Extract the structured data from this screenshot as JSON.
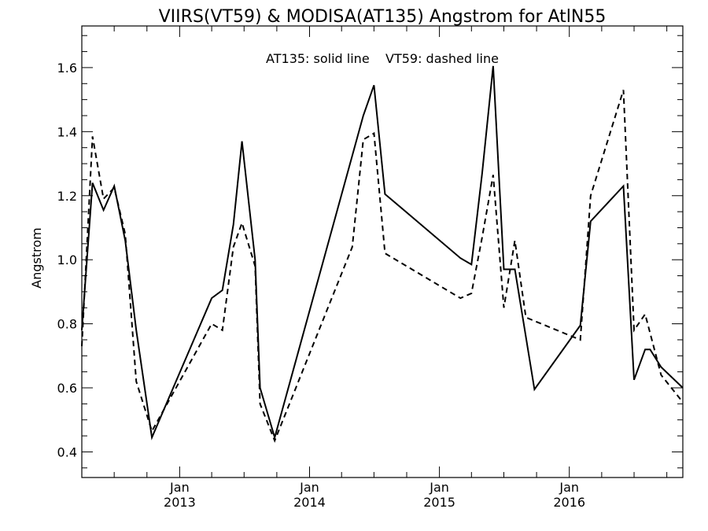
{
  "chart_data": {
    "type": "line",
    "title": "VIIRS(VT59) & MODISA(AT135)  Angstrom for AtlN55",
    "annotation": "AT135: solid line    VT59: dashed line",
    "xlabel": "",
    "ylabel": "Angstrom",
    "xlim": [
      "2012-04-01",
      "2016-11-15"
    ],
    "ylim": [
      0.32,
      1.73
    ],
    "yticks": [
      0.4,
      0.6,
      0.8,
      1.0,
      1.2,
      1.4,
      1.6
    ],
    "ytick_labels": [
      "0.4",
      "0.6",
      "0.8",
      "1.0",
      "1.2",
      "1.4",
      "1.6"
    ],
    "xticks": [
      {
        "date": "2013-01-01",
        "month": "Jan",
        "year": "2013"
      },
      {
        "date": "2014-01-01",
        "month": "Jan",
        "year": "2014"
      },
      {
        "date": "2015-01-01",
        "month": "Jan",
        "year": "2015"
      },
      {
        "date": "2016-01-01",
        "month": "Jan",
        "year": "2016"
      }
    ],
    "grid": false,
    "series": [
      {
        "name": "AT135",
        "style": "solid",
        "points": [
          [
            "2012-04-01",
            0.78
          ],
          [
            "2012-05-01",
            1.24
          ],
          [
            "2012-06-01",
            1.155
          ],
          [
            "2012-07-01",
            1.23
          ],
          [
            "2012-08-01",
            1.06
          ],
          [
            "2012-09-01",
            0.78
          ],
          [
            "2012-10-15",
            0.445
          ],
          [
            "2013-04-01",
            0.88
          ],
          [
            "2013-05-01",
            0.905
          ],
          [
            "2013-06-01",
            1.11
          ],
          [
            "2013-06-25",
            1.37
          ],
          [
            "2013-08-01",
            1.0
          ],
          [
            "2013-08-15",
            0.6
          ],
          [
            "2013-09-25",
            0.445
          ],
          [
            "2014-06-01",
            1.45
          ],
          [
            "2014-07-01",
            1.545
          ],
          [
            "2014-08-01",
            1.205
          ],
          [
            "2015-03-01",
            1.005
          ],
          [
            "2015-04-01",
            0.985
          ],
          [
            "2015-05-01",
            1.27
          ],
          [
            "2015-06-01",
            1.605
          ],
          [
            "2015-07-01",
            0.97
          ],
          [
            "2015-08-01",
            0.97
          ],
          [
            "2015-09-25",
            0.595
          ],
          [
            "2016-02-01",
            0.795
          ],
          [
            "2016-03-01",
            1.12
          ],
          [
            "2016-06-01",
            1.23
          ],
          [
            "2016-07-01",
            0.625
          ],
          [
            "2016-08-01",
            0.72
          ],
          [
            "2016-08-15",
            0.72
          ],
          [
            "2016-09-15",
            0.665
          ],
          [
            "2016-11-15",
            0.6
          ]
        ]
      },
      {
        "name": "VT59",
        "style": "dashed",
        "points": [
          [
            "2012-04-01",
            0.73
          ],
          [
            "2012-05-01",
            1.385
          ],
          [
            "2012-06-01",
            1.19
          ],
          [
            "2012-07-01",
            1.225
          ],
          [
            "2012-08-01",
            1.08
          ],
          [
            "2012-09-01",
            0.62
          ],
          [
            "2012-10-15",
            0.465
          ],
          [
            "2013-04-01",
            0.8
          ],
          [
            "2013-05-01",
            0.78
          ],
          [
            "2013-06-01",
            1.04
          ],
          [
            "2013-06-25",
            1.115
          ],
          [
            "2013-08-01",
            0.98
          ],
          [
            "2013-08-15",
            0.55
          ],
          [
            "2013-09-25",
            0.435
          ],
          [
            "2014-05-01",
            1.04
          ],
          [
            "2014-06-01",
            1.375
          ],
          [
            "2014-07-01",
            1.395
          ],
          [
            "2014-08-01",
            1.02
          ],
          [
            "2015-03-01",
            0.88
          ],
          [
            "2015-04-01",
            0.895
          ],
          [
            "2015-05-01",
            1.07
          ],
          [
            "2015-06-01",
            1.265
          ],
          [
            "2015-07-01",
            0.85
          ],
          [
            "2015-08-01",
            1.06
          ],
          [
            "2015-09-01",
            0.82
          ],
          [
            "2016-02-01",
            0.75
          ],
          [
            "2016-03-01",
            1.2
          ],
          [
            "2016-06-01",
            1.53
          ],
          [
            "2016-07-01",
            0.78
          ],
          [
            "2016-08-01",
            0.83
          ],
          [
            "2016-09-15",
            0.64
          ],
          [
            "2016-11-15",
            0.555
          ]
        ]
      }
    ]
  }
}
